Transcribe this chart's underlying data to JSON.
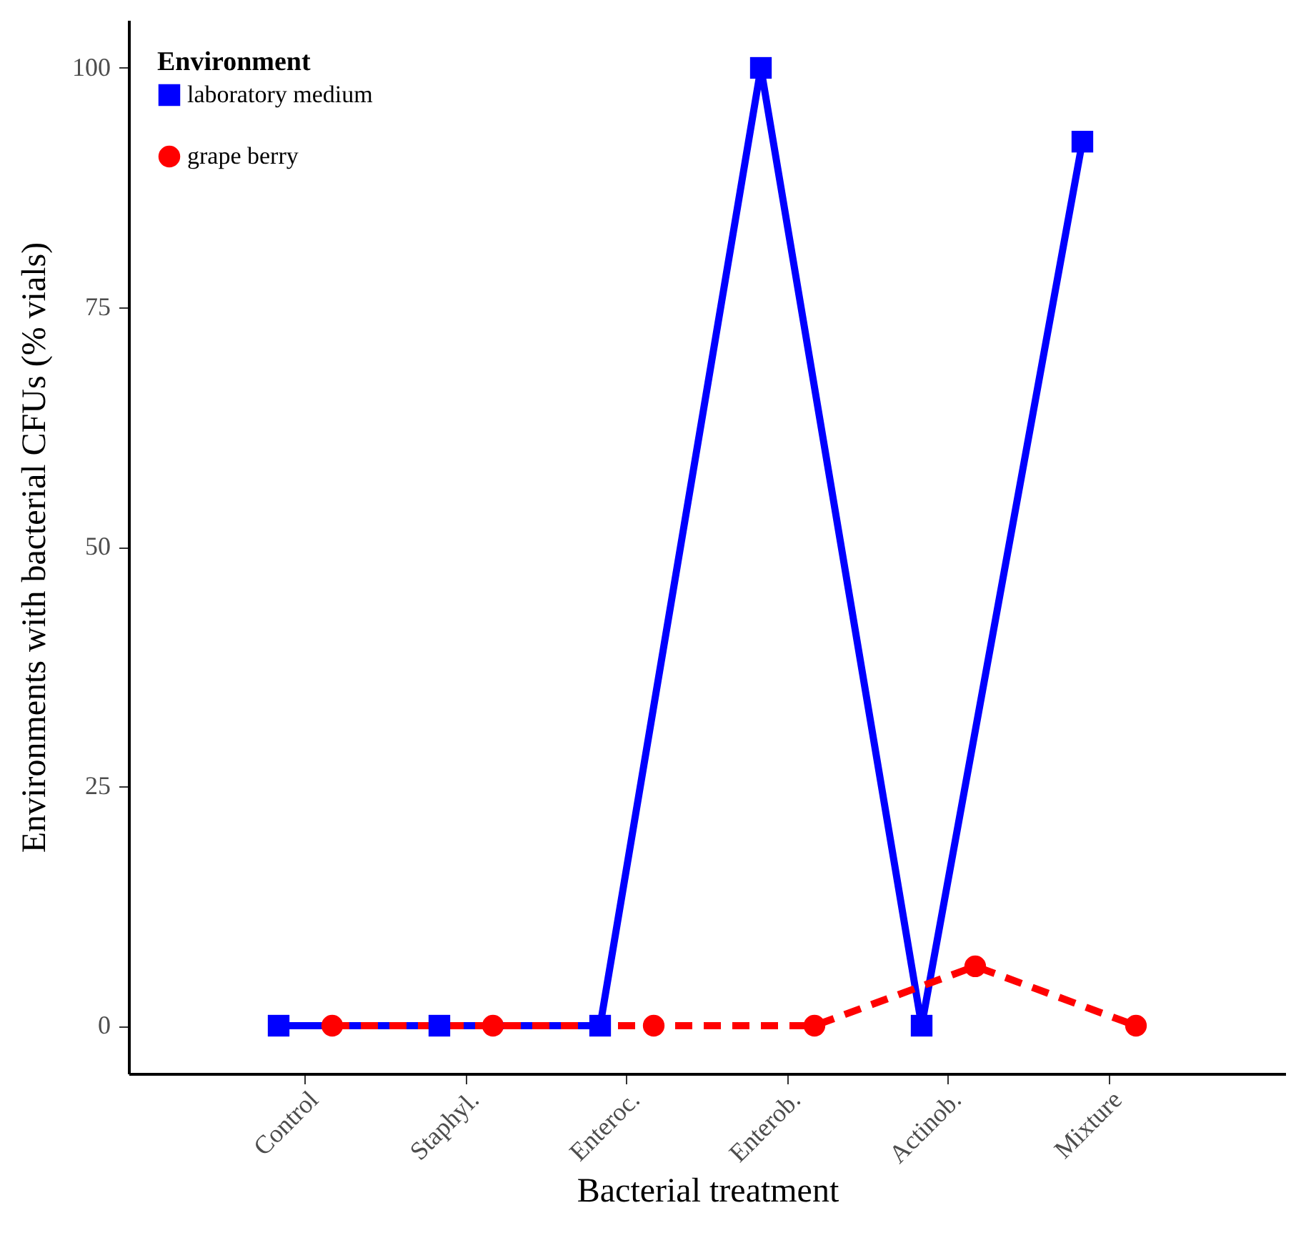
{
  "chart_data": {
    "type": "line",
    "xlabel": "Bacterial treatment",
    "ylabel": "Environments with bacterial CFUs (% vials)",
    "legend_title": "Environment",
    "categories": [
      "Control",
      "Staphyl.",
      "Enteroc.",
      "Enterob.",
      "Actinob.",
      "Mixture"
    ],
    "series": [
      {
        "name": "laboratory medium",
        "color": "#0000ff",
        "values": [
          0,
          0,
          0,
          100,
          0,
          92.3
        ],
        "marker": "square",
        "line_style": "solid"
      },
      {
        "name": "grape berry",
        "color": "#ff0000",
        "values": [
          0,
          0,
          0,
          0,
          6.2,
          0
        ],
        "marker": "circle",
        "line_style": "dashed"
      }
    ],
    "ylim": [
      -5,
      105
    ],
    "yticks": [
      0,
      25,
      50,
      75,
      100
    ],
    "grid": false,
    "legend": "top left"
  }
}
